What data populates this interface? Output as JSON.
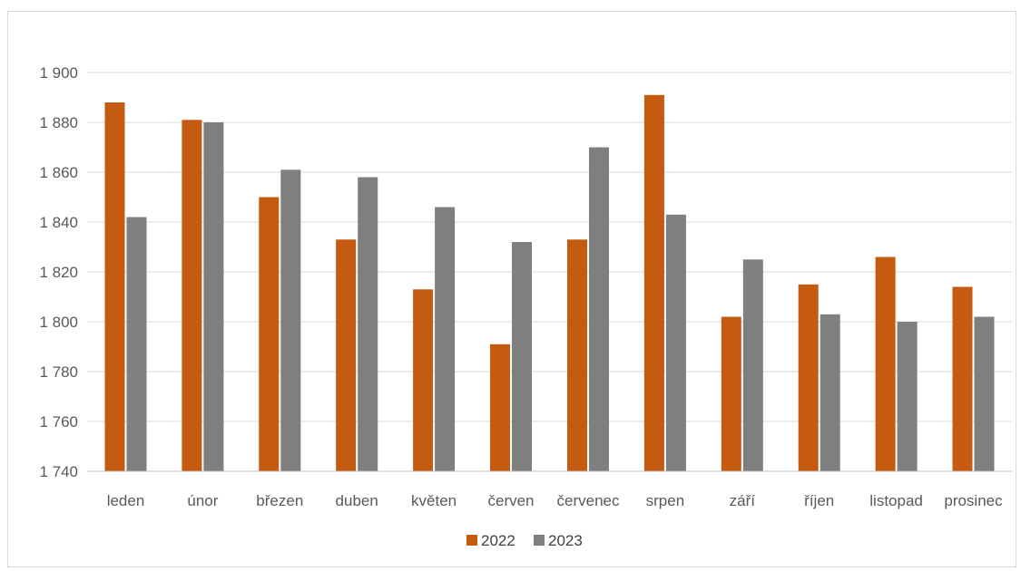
{
  "chart_data": {
    "type": "bar",
    "title": "",
    "xlabel": "",
    "ylabel": "",
    "categories": [
      "leden",
      "únor",
      "březen",
      "duben",
      "květen",
      "červen",
      "červenec",
      "srpen",
      "září",
      "říjen",
      "listopad",
      "prosinec"
    ],
    "series": [
      {
        "name": "2022",
        "color": "#c55a11",
        "values": [
          1888,
          1881,
          1850,
          1833,
          1813,
          1791,
          1833,
          1891,
          1802,
          1815,
          1826,
          1814
        ]
      },
      {
        "name": "2023",
        "color": "#7f7f7f",
        "values": [
          1842,
          1880,
          1861,
          1858,
          1846,
          1832,
          1870,
          1843,
          1825,
          1803,
          1800,
          1802
        ]
      }
    ],
    "ylim": [
      1740,
      1900
    ],
    "yticks": [
      1740,
      1760,
      1780,
      1800,
      1820,
      1840,
      1860,
      1880,
      1900
    ],
    "ytick_labels": [
      "1 740",
      "1 760",
      "1 780",
      "1 800",
      "1 820",
      "1 840",
      "1 860",
      "1 880",
      "1 900"
    ],
    "grid": true,
    "legend_position": "bottom"
  }
}
